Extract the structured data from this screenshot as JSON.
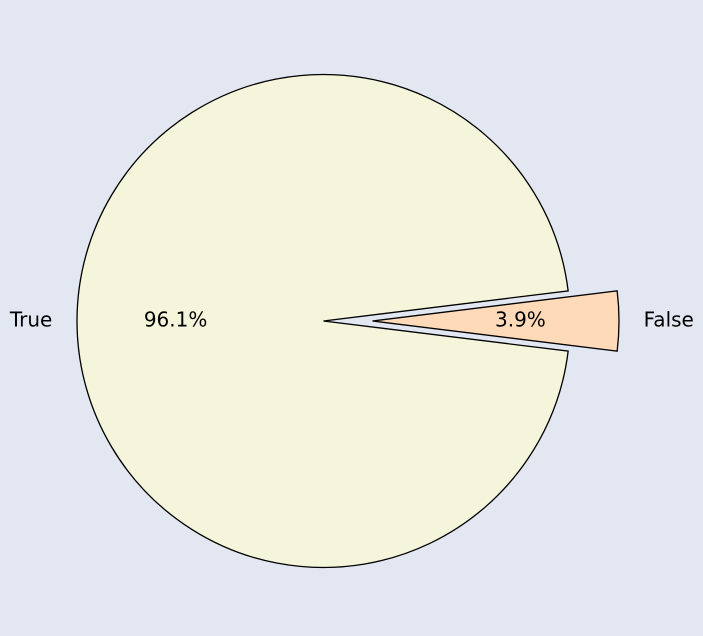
{
  "chart_data": {
    "type": "pie",
    "categories": [
      "True",
      "False"
    ],
    "values": [
      96.1,
      3.9
    ],
    "value_labels": [
      "96.1%",
      "3.9%"
    ],
    "colors": [
      "#f5f5dc",
      "#ffdab9"
    ],
    "exploded": [
      "False"
    ],
    "edge_color": "#000000",
    "background": "#e2e7f1"
  }
}
